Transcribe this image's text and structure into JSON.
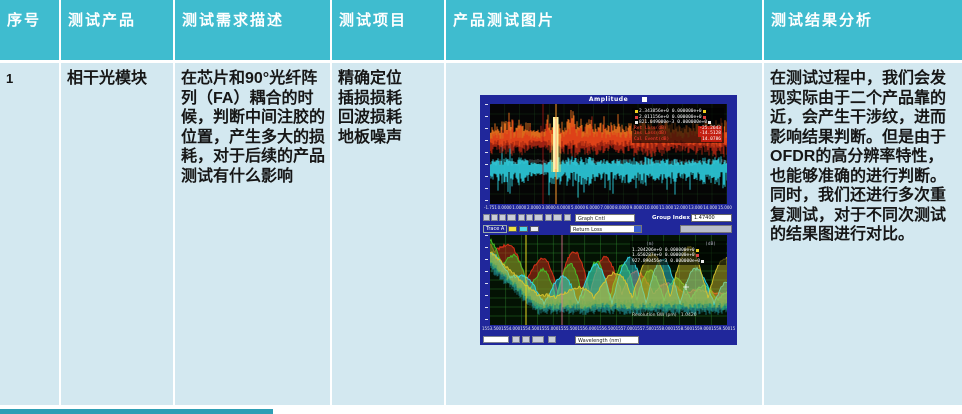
{
  "colors": {
    "header_bg": "#3fbccf",
    "body_bg": "#d3e8f0",
    "accent_bar": "#2d9fb5",
    "instrument_bg": "#20279b",
    "trace_orange": "#ff7a20",
    "trace_red": "#e03018",
    "trace_cyan": "#2fd8ea",
    "trace_green": "#48c228",
    "trace_yellow": "#d8c52e",
    "peak_yellow": "#f8f0a0"
  },
  "table": {
    "headers": [
      "序号",
      "测试产品",
      "测试需求描述",
      "测试项目",
      "产品测试图片",
      "测试结果分析"
    ],
    "row": {
      "index": "1",
      "product": "相干光模块",
      "requirement": "在芯片和90°光纤阵列（FA）耦合的时候，判断中间注胶的位置，产生多大的损耗，对于后续的产品测试有什么影响",
      "items": [
        "精确定位",
        "插损损耗",
        "回波损耗",
        "地板噪声"
      ],
      "analysis": "在测试过程中，我们会发现实际由于二个产品靠的近，会产生干涉纹，进而影响结果判断。但是由于OFDR的高分辨率特性，也能够准确的进行判断。同时，我们还进行多次重复测试，对于不同次测试的结果图进行对比。"
    }
  },
  "instrument": {
    "title_dropdown": "Amplitude",
    "top_plot": {
      "xlabels": [
        "-1.751",
        "0.0000",
        "1.0000",
        "2.0000",
        "3.0000",
        "4.0000",
        "5.0000",
        "6.0000",
        "7.0000",
        "8.0000",
        "9.0000",
        "10.000",
        "11.000",
        "12.000",
        "13.000",
        "14.000",
        "15.000"
      ],
      "readout": [
        {
          "v1": "2.343856e+0",
          "v2": "0.000000e+0"
        },
        {
          "v1": "2.011156e+0",
          "v2": "0.000000e+0"
        },
        {
          "v1": "821.049000e-3",
          "v2": "0.000000e+0"
        }
      ],
      "loss_rows": [
        {
          "label": "Ret Loss(dB)",
          "value": "-25.2643"
        },
        {
          "label": "Ins Loss(dB)",
          "value": "-14.5128"
        },
        {
          "label": "Cal Event(dB)",
          "value": "14.0786"
        }
      ]
    },
    "toolbar": {
      "graph_ctl": "Graph Cntl",
      "group_index_label": "Group Index",
      "group_index_value": "1.47400",
      "trace_label": "Trace A",
      "graph2_dropdown": "Return Loss",
      "wavelength_dropdown": "Wavelength (nm)"
    },
    "bottom_plot": {
      "xlabels": [
        "1553.500",
        "1554.000",
        "1554.500",
        "1555.000",
        "1555.500",
        "1556.000",
        "1556.500",
        "1557.000",
        "1557.500",
        "1558.000",
        "1558.500",
        "1559.000",
        "1559.500",
        "1560.000",
        "1560.5"
      ],
      "readout_headers": [
        "(m)",
        "(dB)"
      ],
      "readout": [
        {
          "v1": "1.204206e+0",
          "v2": "0.000000e+0"
        },
        {
          "v1": "1.650287e+0",
          "v2": "0.000000e+0"
        },
        {
          "v1": "927.890456e-3",
          "v2": "0.000000e+0"
        }
      ],
      "resolution_label": "Resolution BW (pm)",
      "resolution_value": "1.0420"
    }
  }
}
